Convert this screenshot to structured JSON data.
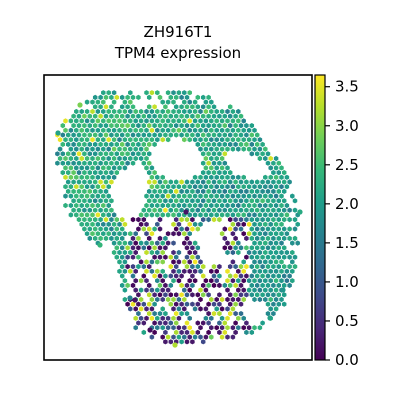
{
  "chart_data": {
    "type": "scatter",
    "title_lines": [
      "ZH916T1",
      "TPM4 expression"
    ],
    "xlabel": "",
    "ylabel": "",
    "axes_ticks_visible": false,
    "marker": "hexagon",
    "colorbar": {
      "colormap": "viridis",
      "vmin": 0.0,
      "vmax": 3.65,
      "ticks": [
        0.0,
        0.5,
        1.0,
        1.5,
        2.0,
        2.5,
        3.0,
        3.5
      ],
      "tick_labels": [
        "0.0",
        "0.5",
        "1.0",
        "1.5",
        "2.0",
        "2.5",
        "3.0",
        "3.5"
      ]
    },
    "regions": [
      {
        "name": "upper-tissue",
        "typical_value": 2.2,
        "spread": 0.45
      },
      {
        "name": "right-lobe",
        "typical_value": 2.0,
        "spread": 0.4
      },
      {
        "name": "lower-cluster",
        "typical_value": 1.2,
        "spread": 1.4
      }
    ]
  },
  "colors": {
    "background": "#ffffff",
    "axes_edge": "#000000",
    "viridis_stops": [
      "#440154",
      "#482878",
      "#3e4a89",
      "#31688e",
      "#26828e",
      "#1f9e89",
      "#35b779",
      "#6ece58",
      "#b5de2b",
      "#fde725"
    ]
  }
}
